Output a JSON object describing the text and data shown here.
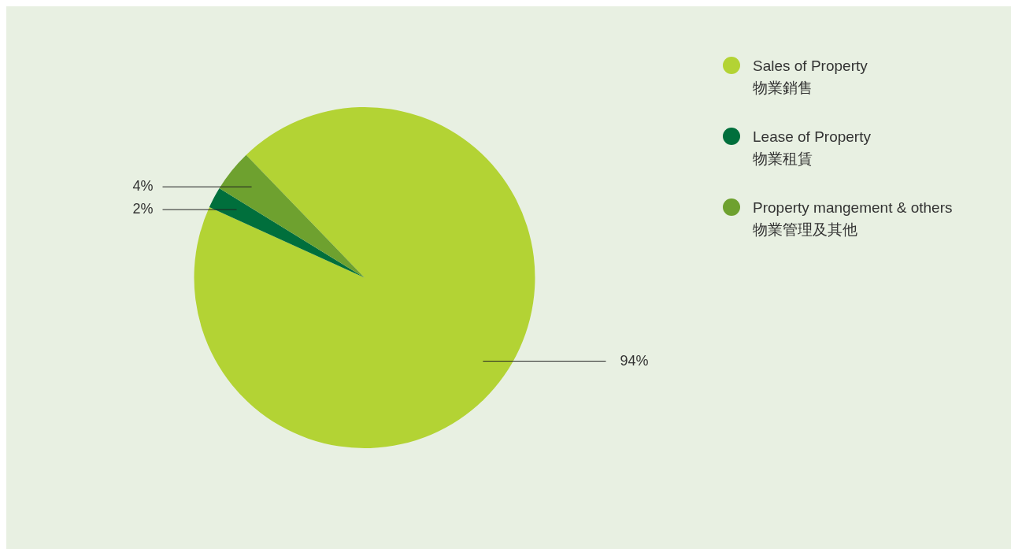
{
  "chart_data": {
    "type": "pie",
    "categories": [
      "Sales of Property\n物業銷售",
      "Lease of Property\n物業租賃",
      "Property mangement & others\n物業管理及其他"
    ],
    "values": [
      94,
      2,
      4
    ],
    "colors": [
      "#b3d334",
      "#006f3c",
      "#6ea12f"
    ],
    "value_labels": [
      "94%",
      "2%",
      "4%"
    ],
    "legend": "top right"
  }
}
